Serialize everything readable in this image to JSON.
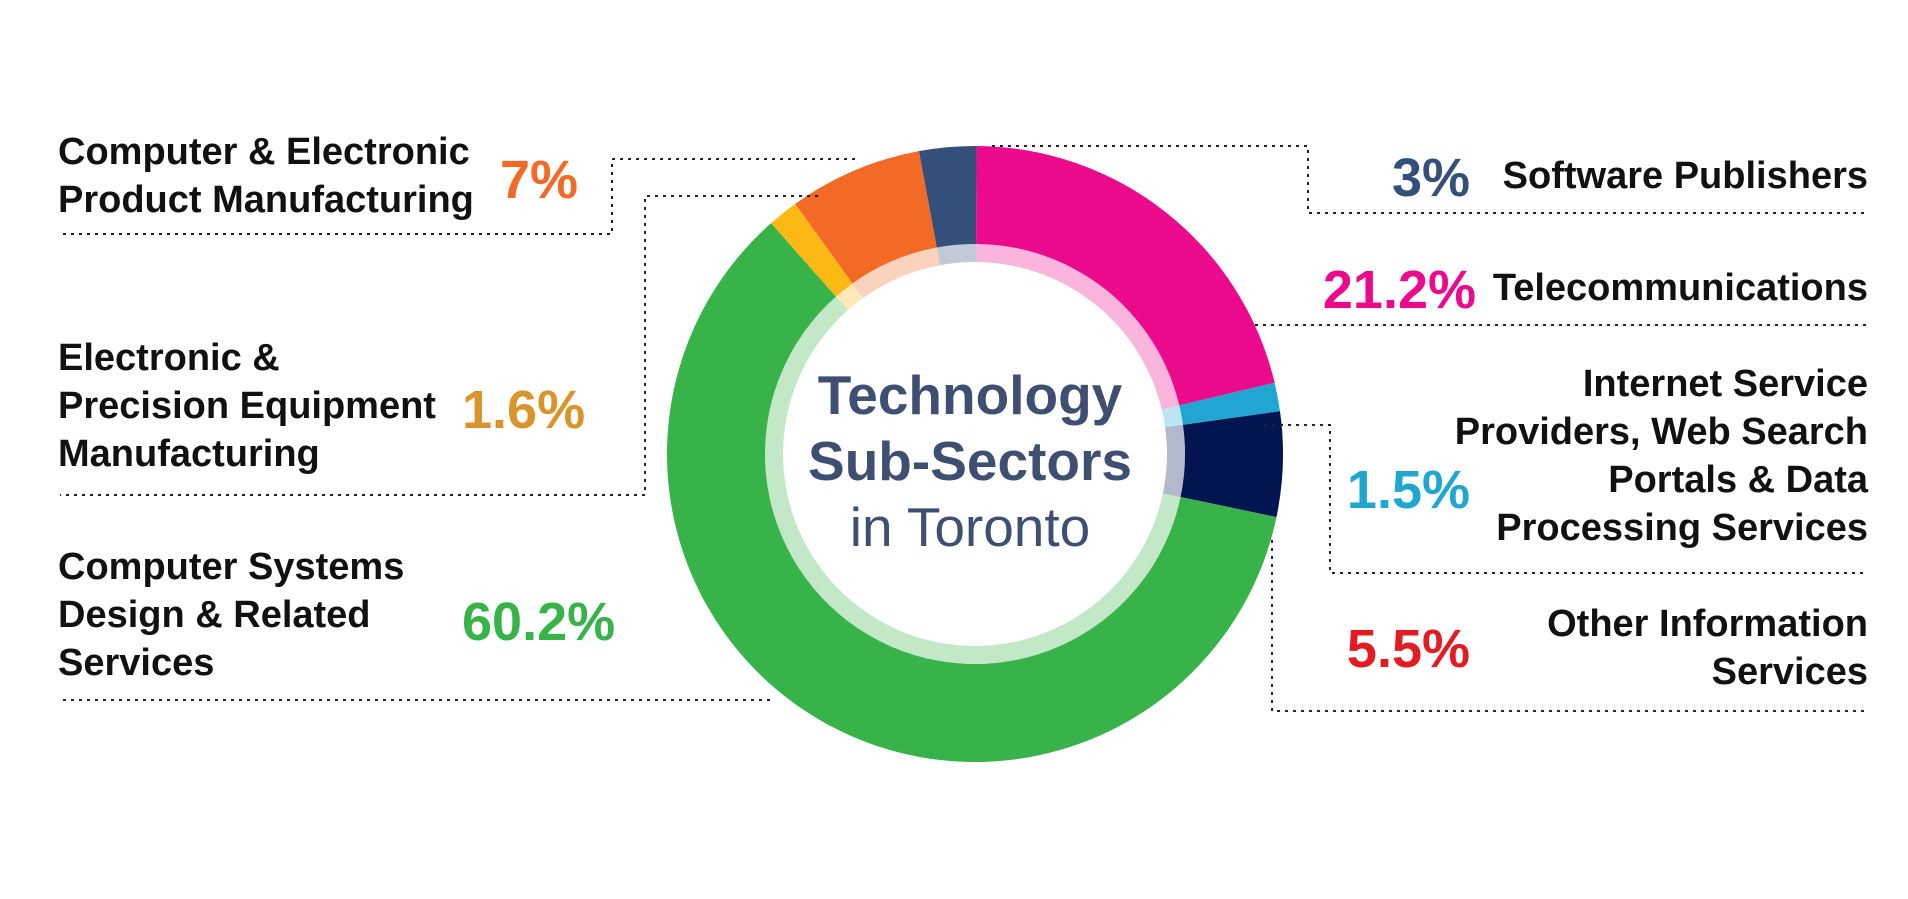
{
  "center_title": {
    "line1": "Technology",
    "line2": "Sub-Sectors",
    "line3": "in Toronto"
  },
  "chart_data": {
    "type": "pie",
    "title": "Technology Sub-Sectors in Toronto",
    "donut": true,
    "slices": [
      {
        "label": "Software Publishers",
        "label_lines": [
          "Software Publishers"
        ],
        "value": 3,
        "value_label": "3%",
        "color": "#34507a",
        "label_color": "#34507a"
      },
      {
        "label": "Telecommunications",
        "label_lines": [
          "Telecommunications"
        ],
        "value": 21.2,
        "value_label": "21.2%",
        "color": "#ec0a8c",
        "label_color": "#ec0a8c"
      },
      {
        "label": "Internet Service Providers, Web Search Portals & Data Processing Services",
        "label_lines": [
          "Internet Service",
          "Providers, Web Search",
          "Portals & Data",
          "Processing Services"
        ],
        "value": 1.5,
        "value_label": "1.5%",
        "color": "#21a6d2",
        "label_color": "#21a6d2"
      },
      {
        "label": "Other Information Services",
        "label_lines": [
          "Other Information",
          "Services"
        ],
        "value": 5.5,
        "value_label": "5.5%",
        "color": "#031550",
        "label_color": "#e31b23"
      },
      {
        "label": "Computer Systems Design & Related Services",
        "label_lines": [
          "Computer Systems",
          "Design & Related",
          "Services"
        ],
        "value": 60.2,
        "value_label": "60.2%",
        "color": "#37b34a",
        "label_color": "#37b34a"
      },
      {
        "label": "Electronic & Precision Equipment Manufacturing",
        "label_lines": [
          "Electronic &",
          "Precision Equipment",
          "Manufacturing"
        ],
        "value": 1.6,
        "value_label": "1.6%",
        "color": "#fcb813",
        "label_color": "#d9952b"
      },
      {
        "label": "Computer & Electronic Product Manufacturing",
        "label_lines": [
          "Computer & Electronic",
          "Product Manufacturing"
        ],
        "value": 7,
        "value_label": "7%",
        "color": "#f26a25",
        "label_color": "#f26a25"
      }
    ]
  }
}
